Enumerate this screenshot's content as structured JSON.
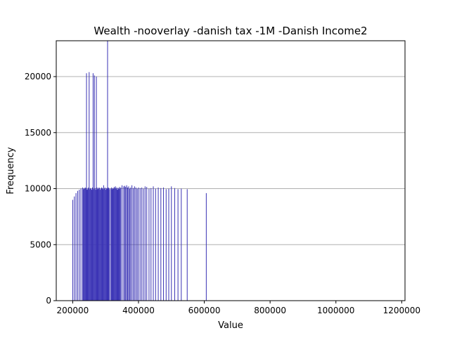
{
  "chart_data": {
    "type": "bar",
    "title": "Wealth -nooverlay -danish tax -1M -Danish Income2",
    "xlabel": "Value",
    "ylabel": "Frequency",
    "xlim": [
      150000,
      1210000
    ],
    "ylim": [
      0,
      23200
    ],
    "xticks": [
      200000,
      400000,
      600000,
      800000,
      1000000,
      1200000
    ],
    "yticks": [
      0,
      5000,
      10000,
      15000,
      20000
    ],
    "grid": "y",
    "bar_color": "#3a33b5",
    "spine_color": "#000000",
    "grid_color": "#b0b0b0",
    "bin_width": 400,
    "bars": {
      "x": [
        200000,
        205000,
        210000,
        215000,
        220000,
        225000,
        230000,
        232000,
        234000,
        236000,
        238000,
        240000,
        242000,
        244000,
        246000,
        248000,
        250000,
        252000,
        254000,
        256000,
        258000,
        260000,
        262000,
        264000,
        266000,
        268000,
        270000,
        272000,
        274000,
        276000,
        278000,
        280000,
        282000,
        284000,
        286000,
        288000,
        290000,
        292000,
        294000,
        296000,
        298000,
        300000,
        302000,
        304000,
        306000,
        308000,
        310000,
        312000,
        316000,
        318000,
        320000,
        322000,
        324000,
        326000,
        328000,
        330000,
        332000,
        334000,
        336000,
        338000,
        340000,
        342000,
        344000,
        346000,
        350000,
        355000,
        358000,
        361000,
        364000,
        367000,
        370000,
        373000,
        376000,
        380000,
        384000,
        388000,
        392000,
        396000,
        400000,
        405000,
        410000,
        415000,
        420000,
        425000,
        432000,
        438000,
        445000,
        452000,
        460000,
        468000,
        476000,
        484000,
        492000,
        500000,
        510000,
        520000,
        530000,
        548000,
        606000
      ],
      "y": [
        9000,
        9300,
        9600,
        9800,
        9900,
        10000,
        10100,
        9950,
        10050,
        9980,
        10100,
        10050,
        20300,
        9900,
        10000,
        10100,
        20400,
        9950,
        10050,
        10000,
        9900,
        10100,
        20300,
        9950,
        20100,
        10050,
        9900,
        20000,
        10100,
        9950,
        10000,
        10100,
        10050,
        9900,
        10000,
        10100,
        10050,
        9950,
        10300,
        10000,
        10100,
        9900,
        10050,
        10000,
        23200,
        10100,
        10050,
        9950,
        10000,
        10100,
        9950,
        10050,
        10000,
        10150,
        10050,
        10200,
        10000,
        10100,
        9900,
        10050,
        10000,
        10150,
        10000,
        10100,
        10300,
        10200,
        10250,
        10150,
        10300,
        10100,
        10200,
        10000,
        10100,
        10300,
        10050,
        10200,
        10100,
        10000,
        10100,
        10050,
        10100,
        10000,
        10200,
        10150,
        10000,
        10050,
        10200,
        10000,
        10100,
        10050,
        10100,
        9950,
        10000,
        10200,
        10050,
        9950,
        10000,
        9950,
        9600
      ]
    }
  }
}
